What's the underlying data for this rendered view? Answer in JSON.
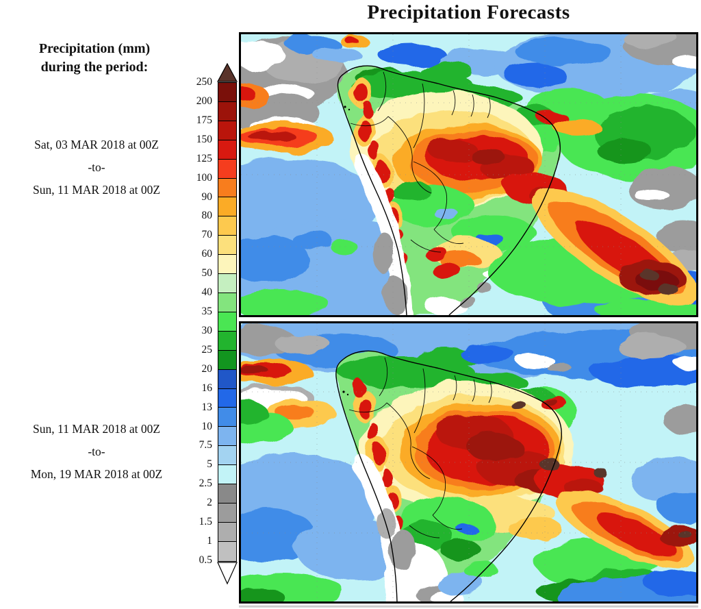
{
  "title": "Precipitation Forecasts",
  "sidebar": {
    "legend_title_line1": "Precipitation (mm)",
    "legend_title_line2": "during the period:",
    "periods": [
      {
        "start": "Sat, 03 MAR 2018 at 00Z",
        "separator": "-to-",
        "end": "Sun, 11 MAR 2018 at 00Z"
      },
      {
        "start": "Sun, 11 MAR 2018 at 00Z",
        "separator": "-to-",
        "end": "Mon, 19 MAR 2018 at 00Z"
      }
    ]
  },
  "colorbar": {
    "unit": "mm",
    "tick_labels": [
      "250",
      "200",
      "175",
      "150",
      "125",
      "100",
      "90",
      "80",
      "70",
      "60",
      "50",
      "40",
      "35",
      "30",
      "25",
      "20",
      "16",
      "13",
      "10",
      "7.5",
      "5",
      "2.5",
      "2",
      "1.5",
      "1",
      "0.5"
    ],
    "segment_colors_top_to_bottom": [
      "#7a100a",
      "#9c130a",
      "#ba150b",
      "#d81910",
      "#f53d1e",
      "#f87d1d",
      "#fbab26",
      "#fdc94e",
      "#fce07c",
      "#fdf5bb",
      "#c5efc0",
      "#83e47e",
      "#4ae653",
      "#22b42e",
      "#12951f",
      "#2057c8",
      "#2268e8",
      "#418ce8",
      "#7db4ef",
      "#a3d3f1",
      "#c2f3f7",
      "#898989",
      "#9c9c9c",
      "#aeaeae",
      "#c0c0c0"
    ],
    "overflow_arrow_color": "#5a342b",
    "underflow_arrow_color": "#ffffff",
    "frame_color": "#000000"
  },
  "maps": {
    "panel_count": 2,
    "region": "South America",
    "land_outline_color": "#000000"
  }
}
